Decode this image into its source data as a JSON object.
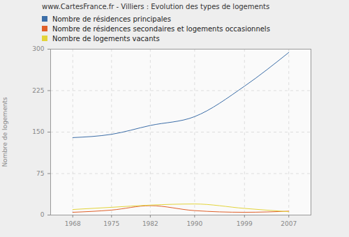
{
  "chart_data": {
    "type": "line",
    "title": "www.CartesFrance.fr - Villiers : Evolution des types de logements",
    "y_label": "Nombre de logements",
    "x": [
      1968,
      1975,
      1982,
      1990,
      1999,
      2007
    ],
    "series": [
      {
        "name": "Nombre de résidences principales",
        "color": "#3c6ea8",
        "values": [
          140,
          146,
          162,
          178,
          233,
          294
        ]
      },
      {
        "name": "Nombre de résidences secondaires et logements occasionnels",
        "color": "#e0602a",
        "values": [
          5,
          9,
          17,
          8,
          5,
          7
        ]
      },
      {
        "name": "Nombre de logements vacants",
        "color": "#e3d43a",
        "values": [
          10,
          14,
          18,
          20,
          12,
          6
        ]
      }
    ],
    "xlim": [
      1964,
      2011
    ],
    "xticks": [
      1968,
      1975,
      1982,
      1990,
      1999,
      2007
    ],
    "ylim": [
      0,
      300
    ],
    "yticks": [
      0,
      75,
      150,
      225,
      300
    ],
    "grid": true,
    "legend": "top-left"
  }
}
